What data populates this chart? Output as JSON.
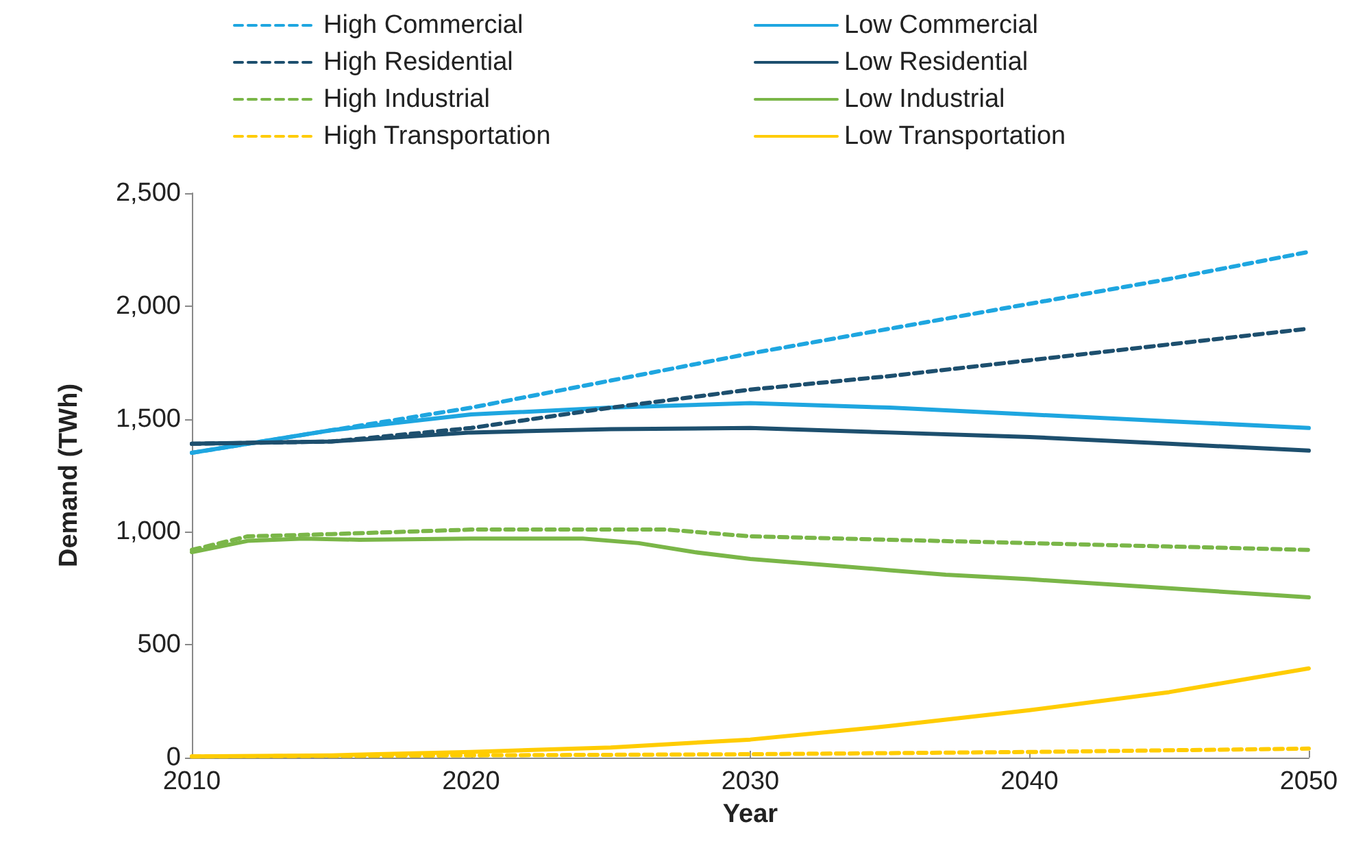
{
  "chart_data": {
    "type": "line",
    "xlabel": "Year",
    "ylabel": "Demand (TWh)",
    "xlim": [
      2010,
      2050
    ],
    "xticks": [
      2010,
      2020,
      2030,
      2040,
      2050
    ],
    "ylim": [
      0,
      2500
    ],
    "yticks": [
      0,
      500,
      {
        "value": 1000,
        "label": "1,000"
      },
      {
        "value": 1500,
        "label": "1,500"
      },
      {
        "value": 2000,
        "label": "2,000"
      },
      {
        "value": 2500,
        "label": "2,500"
      }
    ],
    "grid": false,
    "legend": "top",
    "marker": "none",
    "series": [
      {
        "name": "High Commercial",
        "color": "#1ea6e0",
        "line_style": "dashed",
        "x": [
          2010,
          2015,
          2020,
          2025,
          2030,
          2035,
          2040,
          2045,
          2050
        ],
        "values": [
          1350,
          1450,
          1550,
          1670,
          1790,
          1900,
          2010,
          2120,
          2240
        ]
      },
      {
        "name": "Low Commercial",
        "color": "#1ea6e0",
        "line_style": "solid",
        "x": [
          2010,
          2015,
          2020,
          2025,
          2030,
          2035,
          2040,
          2045,
          2050
        ],
        "values": [
          1350,
          1450,
          1520,
          1550,
          1570,
          1550,
          1520,
          1490,
          1460
        ]
      },
      {
        "name": "High Residential",
        "color": "#1d4f6e",
        "line_style": "dashed",
        "x": [
          2010,
          2015,
          2020,
          2025,
          2030,
          2035,
          2040,
          2045,
          2050
        ],
        "values": [
          1390,
          1400,
          1460,
          1550,
          1630,
          1690,
          1760,
          1830,
          1900
        ]
      },
      {
        "name": "Low Residential",
        "color": "#1d4f6e",
        "line_style": "solid",
        "x": [
          2010,
          2015,
          2020,
          2025,
          2030,
          2035,
          2040,
          2045,
          2050
        ],
        "values": [
          1390,
          1400,
          1440,
          1455,
          1460,
          1440,
          1420,
          1390,
          1360
        ]
      },
      {
        "name": "High Industrial",
        "color": "#7ab648",
        "line_style": "dashed",
        "x": [
          2010,
          2012,
          2015,
          2020,
          2025,
          2027,
          2030,
          2035,
          2040,
          2045,
          2050
        ],
        "values": [
          920,
          980,
          990,
          1010,
          1010,
          1010,
          980,
          965,
          950,
          935,
          920
        ]
      },
      {
        "name": "Low Industrial",
        "color": "#7ab648",
        "line_style": "solid",
        "x": [
          2010,
          2012,
          2014,
          2016,
          2020,
          2024,
          2026,
          2028,
          2030,
          2032,
          2035,
          2037,
          2040,
          2045,
          2050
        ],
        "values": [
          910,
          960,
          970,
          965,
          970,
          970,
          950,
          910,
          880,
          860,
          830,
          810,
          790,
          750,
          710
        ]
      },
      {
        "name": "High Transportation",
        "color": "#ffcc00",
        "line_style": "dashed",
        "x": [
          2010,
          2020,
          2030,
          2040,
          2050
        ],
        "values": [
          5,
          10,
          15,
          25,
          40
        ]
      },
      {
        "name": "Low Transportation",
        "color": "#ffcc00",
        "line_style": "solid",
        "x": [
          2010,
          2015,
          2020,
          2025,
          2030,
          2035,
          2040,
          2045,
          2050
        ],
        "values": [
          5,
          10,
          25,
          45,
          80,
          140,
          210,
          290,
          395
        ]
      }
    ]
  }
}
